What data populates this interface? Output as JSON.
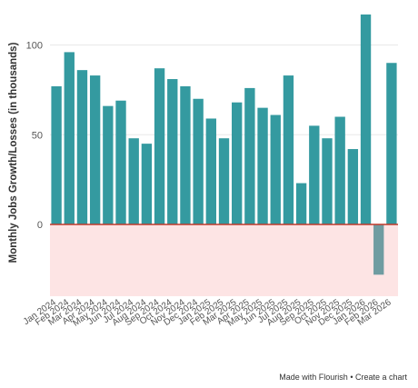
{
  "chart_data": {
    "type": "bar",
    "ylabel": "Monthly Jobs Growth/Losses (in thousands)",
    "ylim": [
      -40,
      120
    ],
    "yticks": [
      0,
      50,
      100
    ],
    "grid": true,
    "negative_region_color": "#fde4e4",
    "zero_line_color": "#c0392b",
    "bar_color": "#349aa0",
    "negative_bar_color": "#6f9ca1",
    "categories": [
      "Jan 2024",
      "Feb 2024",
      "Mar 2024",
      "Apr 2024",
      "May 2024",
      "Jun 2024",
      "Jul 2024",
      "Aug 2024",
      "Sep 2024",
      "Oct 2024",
      "Nov 2024",
      "Dec 2024",
      "Jan 2025",
      "Feb 2025",
      "Mar 2025",
      "Apr 2025",
      "May 2025",
      "Jun 2025",
      "Jul 2025",
      "Aug 2025",
      "Sep 2025",
      "Oct 2025",
      "Nov 2025",
      "Dec 2025",
      "Jan 2026",
      "Feb 2026",
      "Mar 2026"
    ],
    "values": [
      77,
      96,
      86,
      83,
      66,
      69,
      48,
      45,
      87,
      81,
      77,
      70,
      59,
      48,
      68,
      76,
      65,
      61,
      83,
      23,
      55,
      48,
      60,
      42,
      117,
      -28,
      90
    ]
  },
  "footer": {
    "made_with": "Made with Flourish",
    "separator": " • ",
    "create": "Create a chart"
  }
}
